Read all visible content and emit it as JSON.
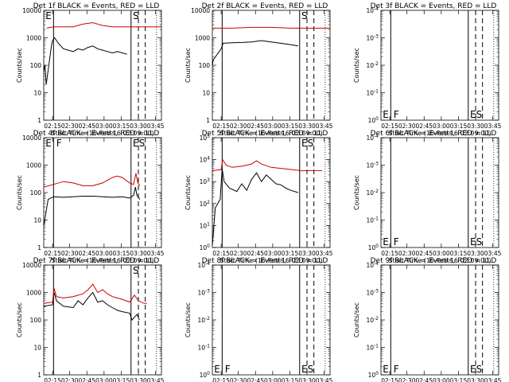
{
  "page": {
    "background": "#ffffff"
  },
  "style": {
    "events_color": "#000000",
    "lld_color": "#cc0000"
  },
  "common": {
    "xlabel": "Start Time (16-Feb-16 02:09:00)",
    "ylabel": "Counts/sec",
    "xticks": [
      "02:15",
      "02:30",
      "02:45",
      "03:00",
      "03:15",
      "03:30",
      "03:45"
    ]
  },
  "chart_data": [
    {
      "id": "det1",
      "type": "line",
      "title": "Det 1f BLACK = Events, RED = LLD",
      "yscale": "log",
      "yticks": [
        "1",
        "10",
        "100",
        "1000",
        "10000"
      ],
      "ydecades": [
        0,
        4
      ],
      "vlines_solid": [
        2.0,
        17.8
      ],
      "vlines_dashed": [
        19.3,
        20.7
      ],
      "vline_dotted": 23.0,
      "flag_labels": [
        {
          "text": "E",
          "x": 0.2,
          "row": "top"
        },
        {
          "text": "S",
          "x": 18.0,
          "row": "top"
        }
      ],
      "series": [
        {
          "name": "Events",
          "color": "#000000",
          "points": [
            [
              0.0,
              1.8
            ],
            [
              0.25,
              2.0
            ],
            [
              0.5,
              1.3
            ],
            [
              1.6,
              2.75
            ],
            [
              1.8,
              2.9
            ],
            [
              2.2,
              3.0
            ],
            [
              3,
              2.8
            ],
            [
              4,
              2.6
            ],
            [
              5,
              2.55
            ],
            [
              6,
              2.5
            ],
            [
              7,
              2.6
            ],
            [
              8,
              2.55
            ],
            [
              9,
              2.65
            ],
            [
              10,
              2.7
            ],
            [
              11,
              2.6
            ],
            [
              12,
              2.55
            ],
            [
              13,
              2.5
            ],
            [
              14,
              2.45
            ],
            [
              15,
              2.5
            ],
            [
              16,
              2.45
            ],
            [
              17,
              2.4
            ]
          ]
        },
        {
          "name": "LLD",
          "color": "#cc0000",
          "points": [
            [
              0.6,
              3.35
            ],
            [
              2,
              3.4
            ],
            [
              4,
              3.4
            ],
            [
              6,
              3.4
            ],
            [
              8,
              3.5
            ],
            [
              10,
              3.55
            ],
            [
              12,
              3.45
            ],
            [
              14,
              3.4
            ],
            [
              16,
              3.4
            ],
            [
              18,
              3.4
            ],
            [
              20,
              3.4
            ],
            [
              24.0,
              3.4
            ]
          ]
        }
      ]
    },
    {
      "id": "det2",
      "type": "line",
      "title": "Det 2f BLACK = Events, RED = LLD",
      "yscale": "log",
      "yticks": [
        "1",
        "10",
        "100",
        "1000",
        "10000"
      ],
      "ydecades": [
        0,
        4
      ],
      "vlines_solid": [
        2.0,
        17.8
      ],
      "vlines_dashed": [
        19.3,
        20.7
      ],
      "vline_dotted": 23.0,
      "flag_labels": [
        {
          "text": "S",
          "x": 18.0,
          "row": "top"
        }
      ],
      "series": [
        {
          "name": "Events",
          "color": "#000000",
          "points": [
            [
              0.0,
              2.0
            ],
            [
              0.2,
              2.2
            ],
            [
              1.8,
              2.6
            ],
            [
              2.2,
              2.8
            ],
            [
              4,
              2.82
            ],
            [
              6,
              2.83
            ],
            [
              8,
              2.85
            ],
            [
              10,
              2.9
            ],
            [
              12,
              2.85
            ],
            [
              14,
              2.8
            ],
            [
              16,
              2.75
            ],
            [
              17.5,
              2.7
            ]
          ]
        },
        {
          "name": "LLD",
          "color": "#cc0000",
          "points": [
            [
              0.0,
              3.35
            ],
            [
              4,
              3.35
            ],
            [
              8,
              3.38
            ],
            [
              12,
              3.38
            ],
            [
              16,
              3.35
            ],
            [
              20,
              3.35
            ],
            [
              24.0,
              3.35
            ]
          ]
        }
      ]
    },
    {
      "id": "det3",
      "type": "line",
      "title": "Det 3f BLACK = Events, RED = LLD",
      "yscale": "log",
      "yticks": [
        "10^0",
        "10^-1",
        "10^-2",
        "10^-3",
        "10^-4"
      ],
      "ydecades": [
        0,
        4
      ],
      "vlines_solid": [
        2.0,
        17.8
      ],
      "vlines_dashed": [
        19.3,
        20.7
      ],
      "vline_dotted": 23.0,
      "flag_labels": [
        {
          "text": "E",
          "x": 0.2,
          "row": "bottom"
        },
        {
          "text": "F",
          "x": 2.4,
          "row": "bottom"
        },
        {
          "text": "ES",
          "x": 18.0,
          "row": "bottom"
        }
      ],
      "series": []
    },
    {
      "id": "det4",
      "type": "line",
      "title": "Det 4f BLACK = Events, RED = LLD",
      "yscale": "log",
      "yticks": [
        "1",
        "10",
        "100",
        "1000",
        "10000"
      ],
      "ydecades": [
        0,
        4
      ],
      "vlines_solid": [
        2.0,
        17.8
      ],
      "vlines_dashed": [
        19.3,
        20.7
      ],
      "vline_dotted": 23.0,
      "flag_labels": [
        {
          "text": "E",
          "x": 0.2,
          "row": "top"
        },
        {
          "text": "F",
          "x": 2.4,
          "row": "top"
        },
        {
          "text": "ES",
          "x": 18.0,
          "row": "top"
        }
      ],
      "series": [
        {
          "name": "Events",
          "color": "#000000",
          "points": [
            [
              0.0,
              0.8
            ],
            [
              0.2,
              1.0
            ],
            [
              0.9,
              1.75
            ],
            [
              1.4,
              1.8
            ],
            [
              2,
              1.85
            ],
            [
              4,
              1.83
            ],
            [
              6,
              1.85
            ],
            [
              8,
              1.87
            ],
            [
              10,
              1.87
            ],
            [
              12,
              1.85
            ],
            [
              14,
              1.83
            ],
            [
              16,
              1.85
            ],
            [
              17.5,
              1.8
            ],
            [
              18.3,
              1.9
            ],
            [
              18.7,
              2.2
            ],
            [
              19.0,
              1.9
            ],
            [
              19.6,
              1.75
            ]
          ]
        },
        {
          "name": "LLD",
          "color": "#cc0000",
          "points": [
            [
              0.0,
              2.2
            ],
            [
              2,
              2.3
            ],
            [
              4,
              2.4
            ],
            [
              6,
              2.35
            ],
            [
              8,
              2.25
            ],
            [
              10,
              2.25
            ],
            [
              12,
              2.35
            ],
            [
              14,
              2.55
            ],
            [
              15,
              2.6
            ],
            [
              16,
              2.55
            ],
            [
              17.5,
              2.35
            ],
            [
              18.3,
              2.3
            ],
            [
              18.8,
              2.7
            ],
            [
              19.2,
              2.35
            ],
            [
              19.6,
              2.25
            ]
          ]
        }
      ]
    },
    {
      "id": "det5",
      "type": "line",
      "title": "Det 5f BLACK = Events, RED = LLD",
      "yscale": "log",
      "yticks": [
        "10^0",
        "10^1",
        "10^2",
        "10^3",
        "10^4",
        "10^5"
      ],
      "ydecades": [
        0,
        5
      ],
      "vlines_solid": [
        2.0,
        17.8
      ],
      "vlines_dashed": [
        19.3,
        20.7
      ],
      "vline_dotted": 23.0,
      "flag_labels": [
        {
          "text": "ES",
          "x": 18.0,
          "row": "top"
        }
      ],
      "series": [
        {
          "name": "Events",
          "color": "#000000",
          "points": [
            [
              0.0,
              0.1
            ],
            [
              0.6,
              1.8
            ],
            [
              1.6,
              2.2
            ],
            [
              2.0,
              3.6
            ],
            [
              2.4,
              3.0
            ],
            [
              3.5,
              2.7
            ],
            [
              5,
              2.55
            ],
            [
              6,
              2.9
            ],
            [
              7,
              2.6
            ],
            [
              8,
              3.1
            ],
            [
              9,
              3.4
            ],
            [
              10,
              3.0
            ],
            [
              11,
              3.3
            ],
            [
              12,
              3.1
            ],
            [
              13,
              2.9
            ],
            [
              14,
              2.85
            ],
            [
              15,
              2.7
            ],
            [
              16,
              2.6
            ],
            [
              17.5,
              2.5
            ]
          ]
        },
        {
          "name": "LLD",
          "color": "#cc0000",
          "points": [
            [
              0.0,
              3.5
            ],
            [
              1.8,
              3.55
            ],
            [
              2.1,
              4.0
            ],
            [
              2.8,
              3.75
            ],
            [
              4,
              3.65
            ],
            [
              6,
              3.7
            ],
            [
              8,
              3.8
            ],
            [
              9,
              3.95
            ],
            [
              10,
              3.8
            ],
            [
              12,
              3.65
            ],
            [
              14,
              3.6
            ],
            [
              16,
              3.55
            ],
            [
              18,
              3.5
            ],
            [
              20,
              3.5
            ],
            [
              22.4,
              3.5
            ]
          ]
        }
      ]
    },
    {
      "id": "det6",
      "type": "line",
      "title": "Det 6f BLACK = Events, RED = LLD",
      "yscale": "log",
      "yticks": [
        "10^0",
        "10^-1",
        "10^-2",
        "10^-3",
        "10^-4"
      ],
      "ydecades": [
        0,
        4
      ],
      "vlines_solid": [
        2.0,
        17.8
      ],
      "vlines_dashed": [
        19.3,
        20.7
      ],
      "vline_dotted": 23.0,
      "flag_labels": [
        {
          "text": "E",
          "x": 0.2,
          "row": "bottom"
        },
        {
          "text": "F",
          "x": 2.4,
          "row": "bottom"
        },
        {
          "text": "ES",
          "x": 18.0,
          "row": "bottom"
        }
      ],
      "series": []
    },
    {
      "id": "det7",
      "type": "line",
      "title": "Det 7f BLACK = Events, RED = LLD",
      "yscale": "log",
      "yticks": [
        "1",
        "10",
        "100",
        "1000",
        "10000"
      ],
      "ydecades": [
        0,
        4
      ],
      "vlines_solid": [
        2.0,
        17.8
      ],
      "vlines_dashed": [
        19.3,
        20.7
      ],
      "vline_dotted": 23.0,
      "flag_labels": [
        {
          "text": "S",
          "x": 18.0,
          "row": "top"
        }
      ],
      "series": [
        {
          "name": "Events",
          "color": "#000000",
          "points": [
            [
              0.0,
              2.5
            ],
            [
              1.8,
              2.55
            ],
            [
              2.1,
              3.0
            ],
            [
              2.6,
              2.7
            ],
            [
              4,
              2.5
            ],
            [
              6,
              2.45
            ],
            [
              7,
              2.7
            ],
            [
              8,
              2.55
            ],
            [
              9,
              2.8
            ],
            [
              10,
              3.0
            ],
            [
              11,
              2.65
            ],
            [
              12,
              2.7
            ],
            [
              13,
              2.55
            ],
            [
              14,
              2.45
            ],
            [
              15,
              2.35
            ],
            [
              16,
              2.3
            ],
            [
              17.5,
              2.25
            ],
            [
              18,
              2.0
            ],
            [
              19,
              2.2
            ],
            [
              19.5,
              2.0
            ]
          ]
        },
        {
          "name": "LLD",
          "color": "#cc0000",
          "points": [
            [
              0.0,
              2.6
            ],
            [
              1.8,
              2.65
            ],
            [
              2.1,
              3.15
            ],
            [
              2.6,
              2.85
            ],
            [
              4,
              2.8
            ],
            [
              6,
              2.85
            ],
            [
              8,
              2.95
            ],
            [
              9,
              3.1
            ],
            [
              10,
              3.3
            ],
            [
              11,
              3.0
            ],
            [
              12,
              3.1
            ],
            [
              13,
              2.95
            ],
            [
              14,
              2.85
            ],
            [
              15,
              2.8
            ],
            [
              16,
              2.75
            ],
            [
              17.5,
              2.65
            ],
            [
              18.5,
              2.9
            ],
            [
              19.3,
              2.7
            ],
            [
              20.5,
              2.6
            ],
            [
              21,
              2.6
            ]
          ]
        }
      ]
    },
    {
      "id": "det8",
      "type": "line",
      "title": "Det 8f BLACK = Events, RED = LLD",
      "yscale": "log",
      "yticks": [
        "10^0",
        "10^-1",
        "10^-2",
        "10^-3",
        "10^-4"
      ],
      "ydecades": [
        0,
        4
      ],
      "vlines_solid": [
        2.0,
        17.8
      ],
      "vlines_dashed": [
        19.3,
        20.7
      ],
      "vline_dotted": 23.0,
      "flag_labels": [
        {
          "text": "E",
          "x": 0.2,
          "row": "bottom"
        },
        {
          "text": "F",
          "x": 2.4,
          "row": "bottom"
        },
        {
          "text": "ES",
          "x": 18.0,
          "row": "bottom"
        }
      ],
      "series": []
    },
    {
      "id": "det9",
      "type": "line",
      "title": "Det 9f BLACK = Events, RED = LLD",
      "yscale": "log",
      "yticks": [
        "10^0",
        "10^-1",
        "10^-2",
        "10^-3",
        "10^-4"
      ],
      "ydecades": [
        0,
        4
      ],
      "vlines_solid": [
        2.0,
        17.8
      ],
      "vlines_dashed": [
        19.3,
        20.7
      ],
      "vline_dotted": 23.0,
      "flag_labels": [
        {
          "text": "E",
          "x": 0.2,
          "row": "bottom"
        },
        {
          "text": "F",
          "x": 2.4,
          "row": "bottom"
        },
        {
          "text": "ES",
          "x": 18.0,
          "row": "bottom"
        }
      ],
      "series": []
    }
  ]
}
